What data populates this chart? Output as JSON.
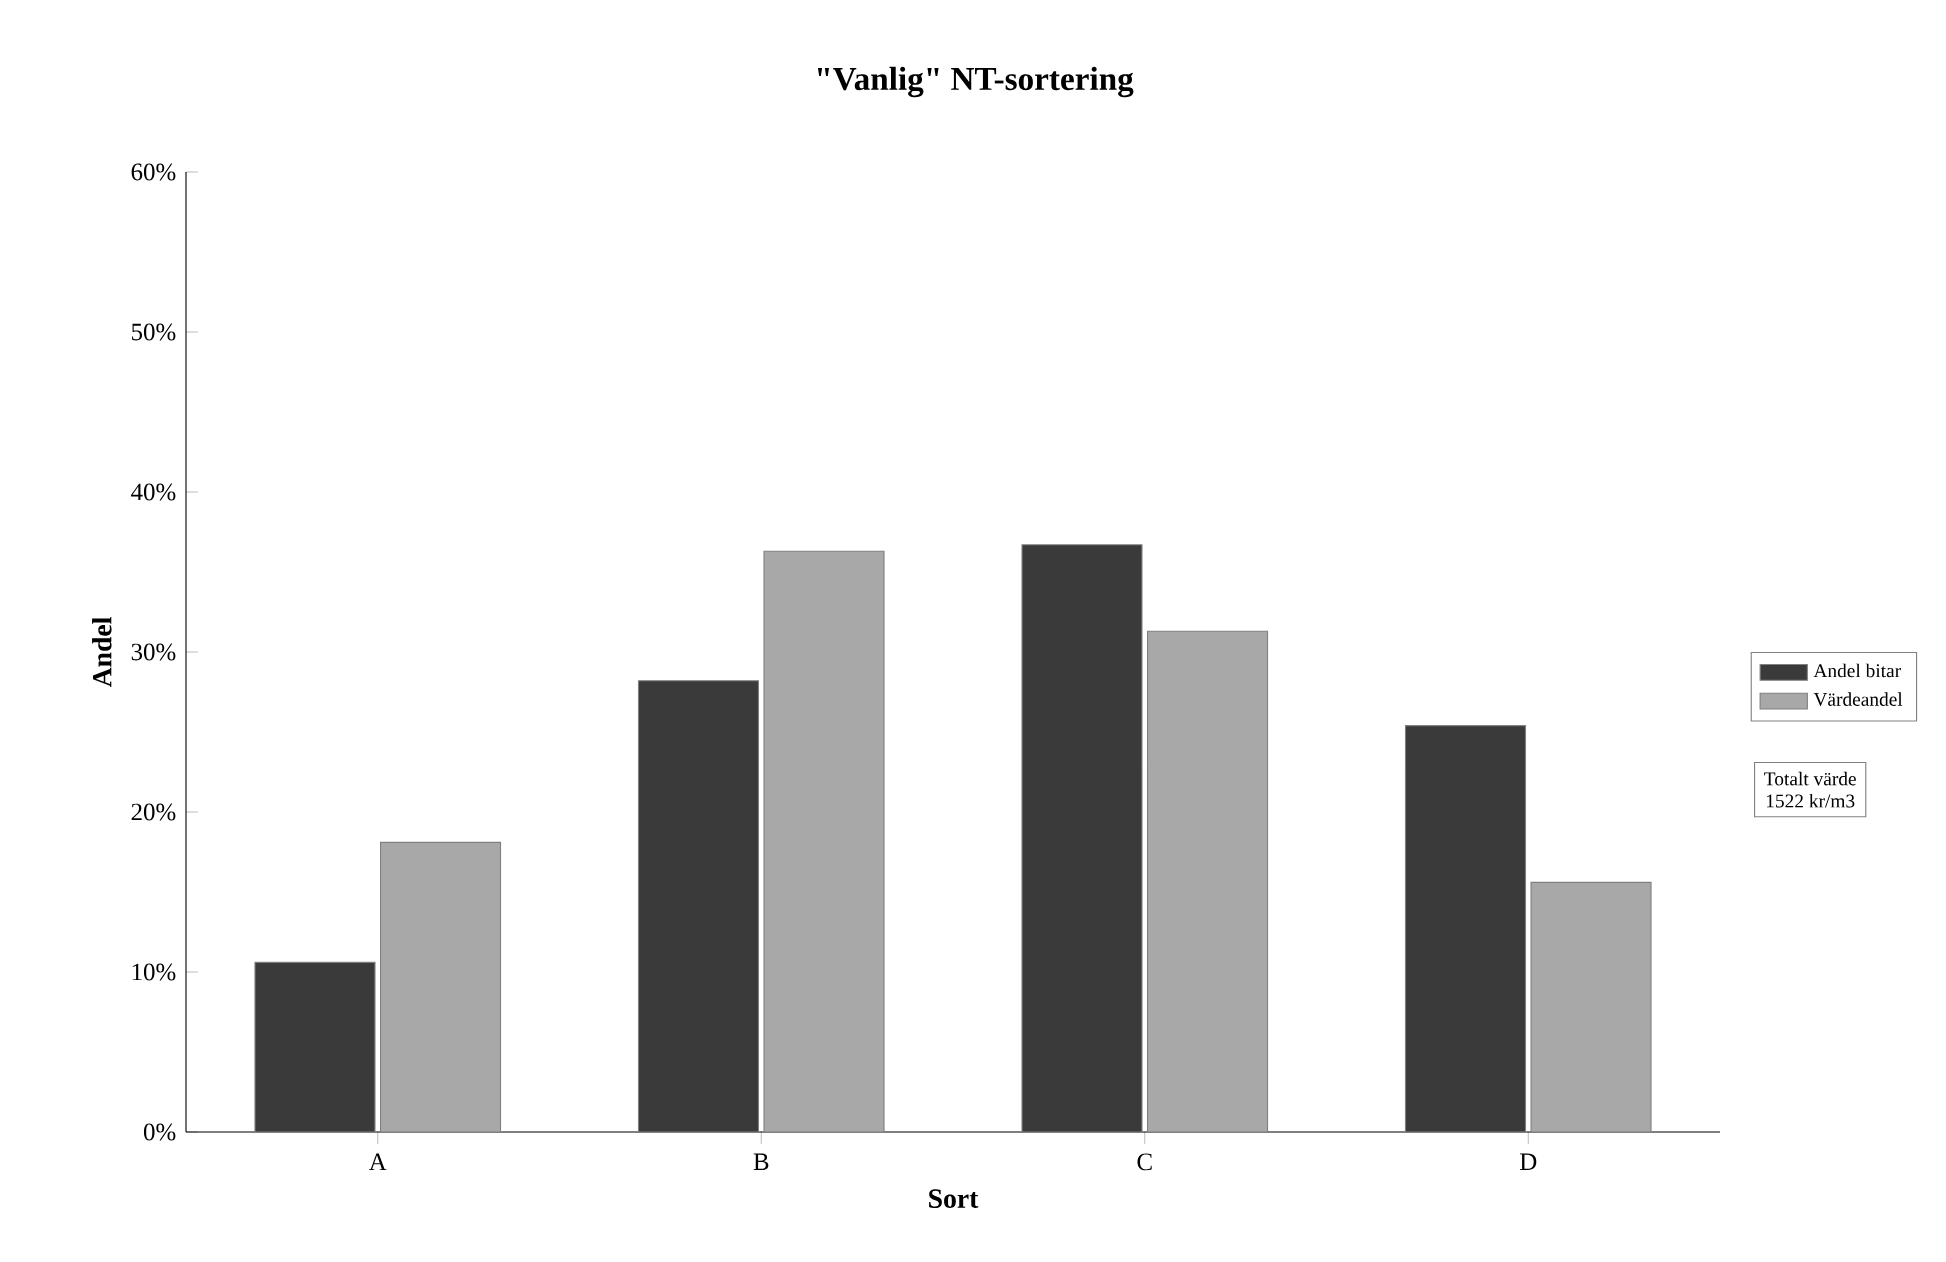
{
  "chart_data": {
    "type": "bar",
    "title": "\"Vanlig\" NT-sortering",
    "xlabel": "Sort",
    "ylabel": "Andel",
    "categories": [
      "A",
      "B",
      "C",
      "D"
    ],
    "series": [
      {
        "name": "Andel bitar",
        "color": "#3a3a3a",
        "values": [
          10.6,
          28.2,
          36.7,
          25.4
        ]
      },
      {
        "name": "Värdeandel",
        "color": "#a8a8a8",
        "values": [
          18.1,
          36.3,
          31.3,
          15.6
        ]
      }
    ],
    "ylim": [
      0,
      60
    ],
    "yticks": [
      {
        "value": 0,
        "label": "0%"
      },
      {
        "value": 10,
        "label": "10%"
      },
      {
        "value": 20,
        "label": "20%"
      },
      {
        "value": 30,
        "label": "30%"
      },
      {
        "value": 40,
        "label": "40%"
      },
      {
        "value": 50,
        "label": "50%"
      },
      {
        "value": 60,
        "label": "60%"
      }
    ],
    "legend": "right",
    "grid": false,
    "annotations": [
      "Totalt värde",
      "1522 kr/m3"
    ]
  }
}
